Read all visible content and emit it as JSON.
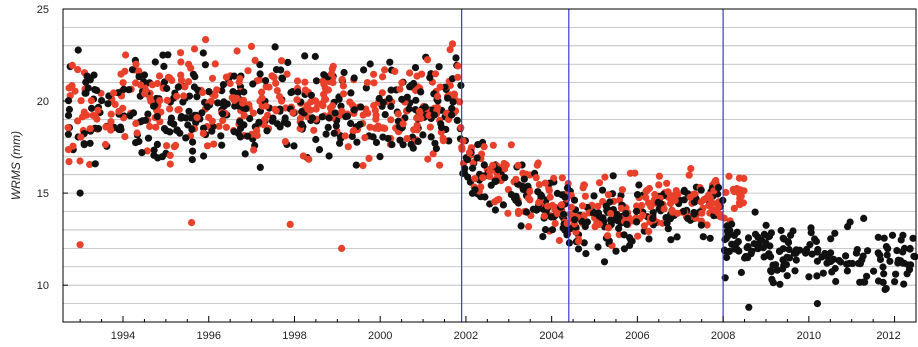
{
  "chart_data": {
    "type": "scatter",
    "title": "",
    "xlabel": "",
    "ylabel": "WRMS (mm)",
    "xlim": [
      1992.6,
      2012.5
    ],
    "ylim": [
      8,
      25
    ],
    "grid": "horizontal",
    "x_ticks": [
      "1994",
      "1996",
      "1998",
      "2000",
      "2002",
      "2004",
      "2006",
      "2008",
      "2010",
      "2012"
    ],
    "x_tick_values": [
      1994,
      1996,
      1998,
      2000,
      2002,
      2004,
      2006,
      2008,
      2010,
      2012
    ],
    "y_ticks": [
      "10",
      "15",
      "20",
      "25"
    ],
    "y_tick_values": [
      10,
      15,
      20,
      25
    ],
    "vertical_markers": [
      2001.9,
      2004.4,
      2008.0
    ],
    "series": [
      {
        "color": "#e8402a",
        "segments": [
          {
            "x0": 1992.7,
            "x1": 2001.9,
            "mean0": 19.6,
            "mean1": 20.0,
            "spread": 1.8
          },
          {
            "x0": 2001.9,
            "x1": 2004.4,
            "mean0": 17.0,
            "mean1": 14.0,
            "spread": 1.2
          },
          {
            "x0": 2004.4,
            "x1": 2008.0,
            "mean0": 13.6,
            "mean1": 14.6,
            "spread": 1.1
          },
          {
            "x0": 2008.0,
            "x1": 2008.5,
            "mean0": 14.8,
            "mean1": 15.2,
            "spread": 1.0
          }
        ],
        "extra_points": [
          [
            1993.0,
            12.2
          ],
          [
            1995.6,
            13.4
          ],
          [
            1997.9,
            13.3
          ],
          [
            1999.1,
            12.0
          ]
        ]
      },
      {
        "color": "#111111",
        "segments": [
          {
            "x0": 1992.7,
            "x1": 2001.9,
            "mean0": 19.4,
            "mean1": 19.8,
            "spread": 1.8
          },
          {
            "x0": 2001.9,
            "x1": 2004.4,
            "mean0": 16.5,
            "mean1": 13.9,
            "spread": 1.2
          },
          {
            "x0": 2004.4,
            "x1": 2008.0,
            "mean0": 13.2,
            "mean1": 14.3,
            "spread": 1.1
          },
          {
            "x0": 2008.0,
            "x1": 2012.5,
            "mean0": 12.2,
            "mean1": 11.3,
            "spread": 1.0
          }
        ],
        "extra_points": [
          [
            1993.0,
            15.0
          ],
          [
            2008.6,
            8.8
          ],
          [
            2010.2,
            9.0
          ]
        ]
      }
    ]
  }
}
